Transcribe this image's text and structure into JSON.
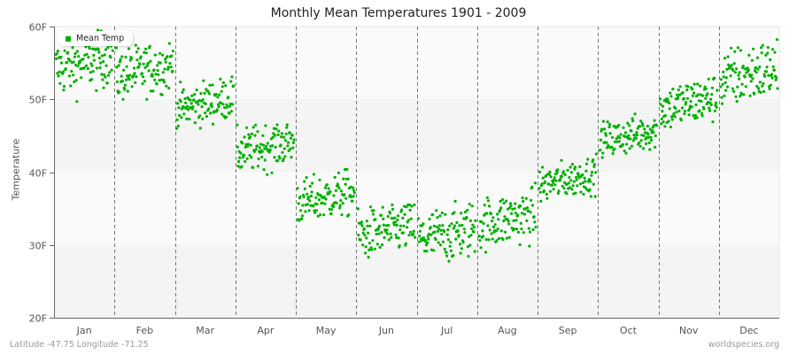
{
  "title": "Monthly Mean Temperatures 1901 - 2009",
  "footer": {
    "location": "Latitude -47.75 Longitude -71.25",
    "source": "worldspecies.org"
  },
  "legend": {
    "label": "Mean Temp",
    "color": "#00b000"
  },
  "chart_data": {
    "type": "scatter",
    "title": "Monthly Mean Temperatures 1901 - 2009",
    "xlabel": "",
    "ylabel": "Temperature",
    "ylim": [
      20,
      60
    ],
    "yticks": [
      "20F",
      "30F",
      "40F",
      "50F",
      "60F"
    ],
    "categories": [
      "Jan",
      "Feb",
      "Mar",
      "Apr",
      "May",
      "Jun",
      "Jul",
      "Aug",
      "Sep",
      "Oct",
      "Nov",
      "Dec"
    ],
    "years": [
      1901,
      2009
    ],
    "points_per_month": 109,
    "series": [
      {
        "name": "Mean Temp",
        "color": "#00b000",
        "monthly_summary": [
          {
            "month": "Jan",
            "mean": 55.0,
            "min": 49.5,
            "max": 59.5
          },
          {
            "month": "Feb",
            "mean": 54.0,
            "min": 50.0,
            "max": 59.2
          },
          {
            "month": "Mar",
            "mean": 49.5,
            "min": 46.0,
            "max": 53.5
          },
          {
            "month": "Apr",
            "mean": 43.5,
            "min": 38.5,
            "max": 46.5
          },
          {
            "month": "May",
            "mean": 36.5,
            "min": 33.0,
            "max": 41.0
          },
          {
            "month": "Jun",
            "mean": 32.0,
            "min": 26.5,
            "max": 35.5
          },
          {
            "month": "Jul",
            "mean": 31.5,
            "min": 26.0,
            "max": 36.0
          },
          {
            "month": "Aug",
            "mean": 33.5,
            "min": 29.0,
            "max": 38.5
          },
          {
            "month": "Sep",
            "mean": 39.0,
            "min": 36.0,
            "max": 42.5
          },
          {
            "month": "Oct",
            "mean": 45.0,
            "min": 42.0,
            "max": 48.5
          },
          {
            "month": "Nov",
            "mean": 49.5,
            "min": 45.0,
            "max": 53.5
          },
          {
            "month": "Dec",
            "mean": 53.5,
            "min": 47.5,
            "max": 58.3
          }
        ]
      }
    ],
    "grid": {
      "horizontal_bands": true,
      "vertical_dashed_month_dividers": true
    },
    "legend_position": "top-left"
  }
}
